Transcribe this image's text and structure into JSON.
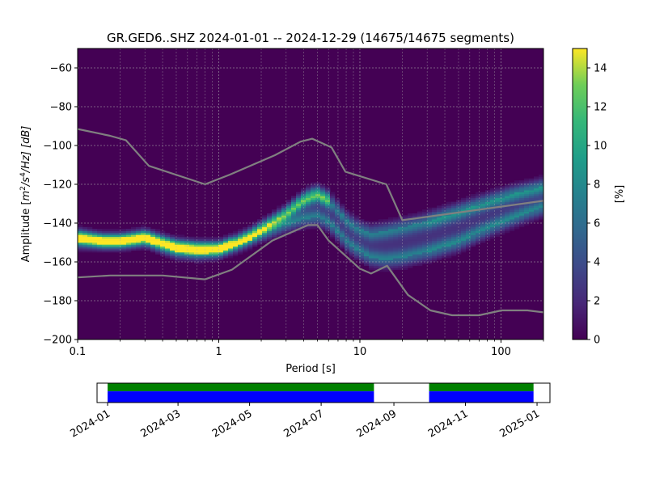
{
  "chart_data": [
    {
      "type": "heatmap",
      "title": "GR.GED6..SHZ   2024-01-01 -- 2024-12-29  (14675/14675 segments)",
      "xlabel": "Period [s]",
      "ylabel_prefix": "Amplitude [",
      "ylabel_m": "m",
      "ylabel_m_exp": "2",
      "ylabel_slash": "/",
      "ylabel_s": "s",
      "ylabel_s_exp": "4",
      "ylabel_suffix": "/Hz] [dB]",
      "x_scale": "log",
      "xlim": [
        0.1,
        200
      ],
      "ylim": [
        -200,
        -50
      ],
      "x_ticks": [
        {
          "value": 0.1,
          "label": "0.1"
        },
        {
          "value": 1,
          "label": "1"
        },
        {
          "value": 10,
          "label": "10"
        },
        {
          "value": 100,
          "label": "100"
        }
      ],
      "y_ticks": [
        {
          "value": -60,
          "label": "−60"
        },
        {
          "value": -80,
          "label": "−80"
        },
        {
          "value": -100,
          "label": "−100"
        },
        {
          "value": -120,
          "label": "−120"
        },
        {
          "value": -140,
          "label": "−140"
        },
        {
          "value": -160,
          "label": "−160"
        },
        {
          "value": -180,
          "label": "−180"
        },
        {
          "value": -200,
          "label": "−200"
        }
      ],
      "grid": true,
      "colormap": "viridis",
      "background_color": "#440154",
      "colorbar": {
        "label": "[%]",
        "min": 0,
        "max": 15,
        "ticks": [
          {
            "value": 0,
            "label": "0"
          },
          {
            "value": 2,
            "label": "2"
          },
          {
            "value": 4,
            "label": "4"
          },
          {
            "value": 6,
            "label": "6"
          },
          {
            "value": 8,
            "label": "8"
          },
          {
            "value": 10,
            "label": "10"
          },
          {
            "value": 12,
            "label": "12"
          },
          {
            "value": 14,
            "label": "14"
          }
        ]
      },
      "density_ridges": [
        {
          "points": [
            [
              0.1,
              -147
            ],
            [
              0.15,
              -149
            ],
            [
              0.2,
              -149
            ],
            [
              0.25,
              -148
            ],
            [
              0.3,
              -147
            ],
            [
              0.4,
              -150
            ],
            [
              0.5,
              -152
            ],
            [
              0.7,
              -153
            ],
            [
              1,
              -153
            ],
            [
              1.3,
              -150
            ],
            [
              1.7,
              -146
            ],
            [
              2.2,
              -141
            ],
            [
              3,
              -135
            ],
            [
              3.5,
              -131
            ],
            [
              4,
              -128
            ],
            [
              4.5,
              -126
            ],
            [
              5,
              -125
            ],
            [
              6,
              -128
            ],
            [
              7,
              -133
            ],
            [
              8,
              -138
            ],
            [
              10,
              -143
            ],
            [
              12,
              -145
            ],
            [
              15,
              -144
            ],
            [
              20,
              -142
            ],
            [
              30,
              -139
            ],
            [
              50,
              -134
            ],
            [
              80,
              -129
            ],
            [
              120,
              -125
            ],
            [
              200,
              -121
            ]
          ],
          "peak": 15
        },
        {
          "points": [
            [
              0.1,
              -150
            ],
            [
              0.2,
              -150
            ],
            [
              0.3,
              -149
            ],
            [
              0.5,
              -155
            ],
            [
              0.7,
              -156
            ],
            [
              1,
              -155
            ],
            [
              1.5,
              -150
            ],
            [
              2,
              -146
            ],
            [
              3,
              -141
            ],
            [
              4,
              -138
            ],
            [
              5,
              -137
            ],
            [
              6,
              -140
            ],
            [
              7,
              -145
            ],
            [
              8,
              -150
            ],
            [
              10,
              -155
            ],
            [
              12,
              -158
            ],
            [
              15,
              -159
            ],
            [
              20,
              -158
            ],
            [
              30,
              -155
            ],
            [
              50,
              -150
            ],
            [
              70,
              -145
            ],
            [
              100,
              -140
            ],
            [
              150,
              -135
            ],
            [
              200,
              -132
            ]
          ],
          "peak": 12
        }
      ],
      "noise_models": [
        {
          "name": "high",
          "points": [
            [
              0.1,
              -91.5
            ],
            [
              0.17,
              -95
            ],
            [
              0.22,
              -97.3
            ],
            [
              0.32,
              -110.5
            ],
            [
              0.8,
              -120
            ],
            [
              1.2,
              -115
            ],
            [
              2.5,
              -105
            ],
            [
              3.8,
              -98
            ],
            [
              4.6,
              -96.5
            ],
            [
              6.3,
              -101
            ],
            [
              7.9,
              -113.5
            ],
            [
              15.4,
              -120
            ],
            [
              20,
              -138.5
            ],
            [
              200,
              -128.5
            ]
          ]
        },
        {
          "name": "low",
          "points": [
            [
              0.1,
              -168
            ],
            [
              0.17,
              -167
            ],
            [
              0.4,
              -167
            ],
            [
              0.8,
              -169
            ],
            [
              1.24,
              -164
            ],
            [
              2.4,
              -149
            ],
            [
              4.3,
              -141
            ],
            [
              5,
              -141
            ],
            [
              6,
              -149
            ],
            [
              10,
              -163.5
            ],
            [
              12,
              -166
            ],
            [
              15.6,
              -162
            ],
            [
              21.9,
              -177
            ],
            [
              31.6,
              -185
            ],
            [
              45,
              -187.5
            ],
            [
              70,
              -187.5
            ],
            [
              101,
              -185
            ],
            [
              154,
              -185
            ],
            [
              200,
              -186
            ]
          ]
        }
      ],
      "noise_model_color": "#808080"
    },
    {
      "type": "timeline",
      "x_ticks": [
        "2024-01",
        "2024-03",
        "2024-05",
        "2024-07",
        "2024-09",
        "2024-11",
        "2025-01"
      ],
      "xlim": [
        "2023-12-23",
        "2025-01-12"
      ],
      "segments": [
        {
          "start": "2024-01-01",
          "end": "2024-08-15"
        },
        {
          "start": "2024-10-01",
          "end": "2024-12-29"
        }
      ],
      "colors": {
        "processed": "#008000",
        "available": "#0000ff"
      }
    }
  ]
}
